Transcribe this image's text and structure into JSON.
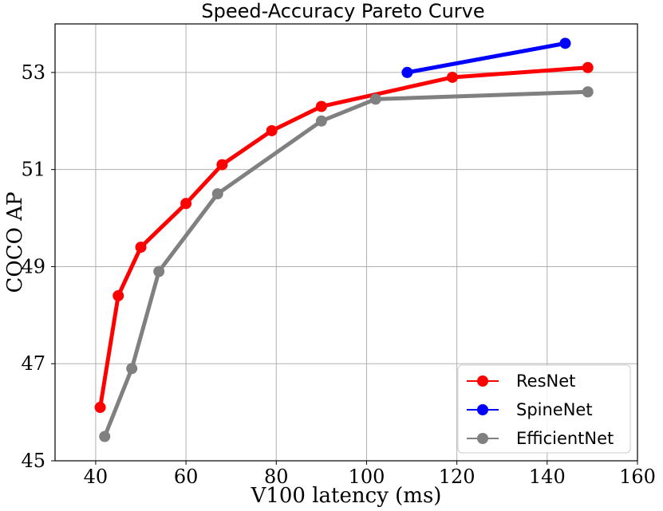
{
  "chart_data": {
    "type": "line",
    "title": "Speed-Accuracy Pareto Curve",
    "xlabel": "V100 latency (ms)",
    "ylabel": "COCO AP",
    "xlim": [
      31,
      160
    ],
    "ylim": [
      45,
      54
    ],
    "xticks": [
      40,
      60,
      80,
      100,
      120,
      140,
      160
    ],
    "yticks": [
      45,
      47,
      49,
      51,
      53
    ],
    "grid": true,
    "legend_position": "lower-right",
    "series": [
      {
        "name": "ResNet",
        "color": "#ff0000",
        "x": [
          41,
          45,
          50,
          60,
          68,
          79,
          90,
          119,
          149
        ],
        "y": [
          46.1,
          48.4,
          49.4,
          50.3,
          51.1,
          51.8,
          52.3,
          52.9,
          53.1
        ]
      },
      {
        "name": "SpineNet",
        "color": "#0000ff",
        "x": [
          109,
          144
        ],
        "y": [
          53.0,
          53.6
        ]
      },
      {
        "name": "EfficientNet",
        "color": "#808080",
        "x": [
          42,
          48,
          54,
          67,
          90,
          102,
          149
        ],
        "y": [
          45.5,
          46.9,
          48.9,
          50.5,
          52.0,
          52.45,
          52.6
        ]
      }
    ]
  }
}
